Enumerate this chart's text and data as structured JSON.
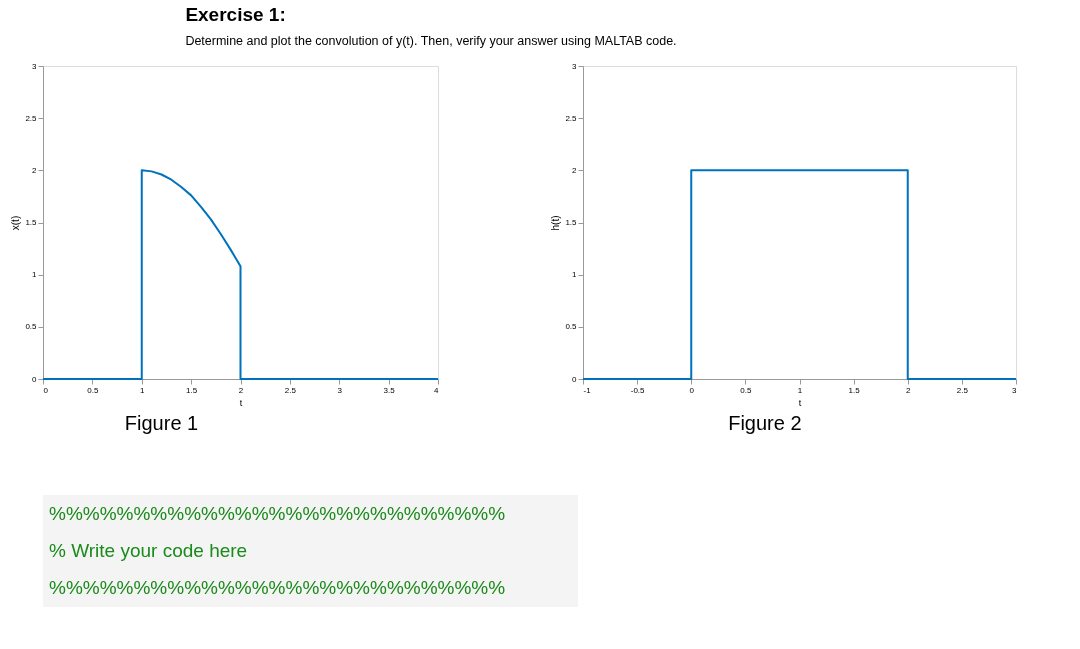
{
  "chart_data": [
    {
      "type": "line",
      "title": "Exercise 1:",
      "subtitle": "Determine and plot the convolution of y(t). Then, verify your answer using MALTAB code.",
      "xlabel": "t",
      "ylabel": "x(t)",
      "x": [
        0,
        1,
        1,
        1.1,
        1.2,
        1.3,
        1.4,
        1.5,
        1.6,
        1.7,
        1.8,
        1.9,
        2,
        2,
        4
      ],
      "series": [
        {
          "color": "#0072bd",
          "values": [
            0,
            0,
            2,
            1.99,
            1.96,
            1.91,
            1.84,
            1.76,
            1.65,
            1.53,
            1.39,
            1.24,
            1.08,
            0,
            0
          ]
        }
      ],
      "xlim": [
        0,
        4
      ],
      "xticks": [
        0,
        0.5,
        1,
        1.5,
        2,
        2.5,
        3,
        3.5,
        4
      ],
      "ylim": [
        0,
        3
      ],
      "yticks": [
        0,
        0.5,
        1,
        1.5,
        2,
        2.5,
        3
      ],
      "grid": false,
      "line_style": "solid",
      "annotations": [
        "Figure 1",
        "%%%%%%%%%%%%%%%%%%%%%%%%%%%",
        "% Write your code here",
        "%%%%%%%%%%%%%%%%%%%%%%%%%%%"
      ]
    },
    {
      "type": "line",
      "xlabel": "t",
      "ylabel": "h(t)",
      "x": [
        -1,
        0,
        0,
        2,
        2,
        3
      ],
      "series": [
        {
          "color": "#0072bd",
          "values": [
            0,
            0,
            2,
            2,
            0,
            0
          ]
        }
      ],
      "xlim": [
        -1,
        3
      ],
      "xticks": [
        -1,
        -0.5,
        0,
        0.5,
        1,
        1.5,
        2,
        2.5,
        3
      ],
      "ylim": [
        0,
        3
      ],
      "yticks": [
        0,
        0.5,
        1,
        1.5,
        2,
        2.5,
        3
      ],
      "grid": false,
      "line_style": "solid",
      "annotations": [
        "Figure 2"
      ]
    }
  ]
}
